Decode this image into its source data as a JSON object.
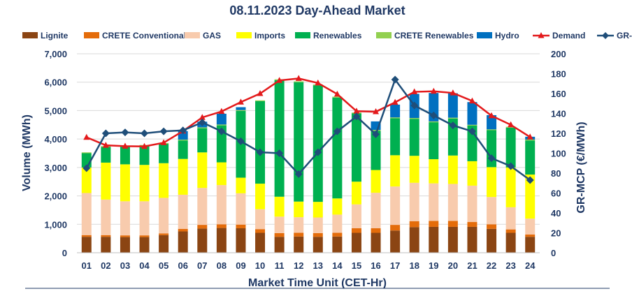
{
  "chart_data": {
    "type": "bar",
    "title": "08.11.2023  Day-Ahead Market",
    "xlabel": "Market Time Unit (CET-Hr)",
    "ylabel": "Volume (MWh)",
    "y2label": "GR-MCP (€/MWh)",
    "ylim": [
      0,
      7000
    ],
    "y2lim": [
      0,
      200
    ],
    "yticks": [
      "0",
      "1,000",
      "2,000",
      "3,000",
      "4,000",
      "5,000",
      "6,000",
      "7,000"
    ],
    "y2ticks": [
      "0",
      "20",
      "40",
      "60",
      "80",
      "100",
      "120",
      "140",
      "160",
      "180",
      "200"
    ],
    "categories": [
      "01",
      "02",
      "03",
      "04",
      "05",
      "06",
      "07",
      "08",
      "09",
      "10",
      "11",
      "12",
      "13",
      "14",
      "15",
      "16",
      "17",
      "18",
      "19",
      "20",
      "21",
      "22",
      "23",
      "24"
    ],
    "series": [
      {
        "name": "Lignite",
        "color": "#8b4513",
        "values": [
          560,
          560,
          550,
          550,
          620,
          750,
          850,
          870,
          860,
          700,
          560,
          570,
          560,
          570,
          700,
          700,
          780,
          900,
          910,
          910,
          910,
          840,
          700,
          560
        ]
      },
      {
        "name": "CRETE Conventional",
        "color": "#e46c0a",
        "values": [
          60,
          60,
          60,
          60,
          60,
          90,
          130,
          130,
          130,
          130,
          130,
          130,
          130,
          130,
          160,
          160,
          200,
          210,
          210,
          210,
          170,
          160,
          120,
          80
        ]
      },
      {
        "name": "GAS",
        "color": "#f8cbad",
        "values": [
          1480,
          1250,
          1200,
          1200,
          1250,
          1200,
          1300,
          1380,
          1100,
          700,
          580,
          550,
          550,
          640,
          840,
          1250,
          1350,
          1350,
          1320,
          1300,
          1280,
          960,
          780,
          560
        ]
      },
      {
        "name": "Imports",
        "color": "#ffff00",
        "values": [
          900,
          1300,
          1300,
          1280,
          1220,
          1260,
          1250,
          800,
          550,
          900,
          700,
          550,
          550,
          570,
          800,
          800,
          1100,
          950,
          850,
          1000,
          860,
          1050,
          1400,
          1550
        ]
      },
      {
        "name": "Renewables",
        "color": "#00b050",
        "values": [
          500,
          550,
          620,
          670,
          680,
          650,
          850,
          1300,
          2350,
          2900,
          4100,
          4200,
          4100,
          3550,
          2400,
          1380,
          1300,
          1300,
          1300,
          1300,
          1250,
          1300,
          1400,
          1200
        ]
      },
      {
        "name": "CRETE Renewables",
        "color": "#92d050",
        "values": [
          30,
          30,
          30,
          30,
          30,
          30,
          30,
          30,
          30,
          30,
          30,
          30,
          30,
          30,
          30,
          30,
          30,
          30,
          30,
          30,
          30,
          30,
          30,
          30
        ]
      },
      {
        "name": "Hydro",
        "color": "#0070c0",
        "values": [
          0,
          0,
          0,
          0,
          0,
          300,
          200,
          380,
          100,
          0,
          0,
          0,
          0,
          0,
          0,
          300,
          450,
          850,
          1000,
          860,
          800,
          500,
          0,
          100
        ]
      }
    ],
    "demand": {
      "name": "Demand",
      "color": "#e31a1c",
      "values": [
        4060,
        3780,
        3750,
        3740,
        3870,
        4280,
        4760,
        4970,
        5300,
        5600,
        6060,
        6130,
        5970,
        5580,
        4980,
        4960,
        5290,
        5660,
        5680,
        5620,
        5340,
        4820,
        4500,
        4070
      ]
    },
    "mcp": {
      "name": "GR-MCP",
      "color": "#1f4e79",
      "values": [
        85,
        120,
        121,
        120,
        122,
        123,
        131,
        122,
        112,
        101,
        100,
        79,
        101,
        122,
        137,
        119,
        174,
        148,
        138,
        128,
        122,
        95,
        87,
        73
      ]
    }
  }
}
